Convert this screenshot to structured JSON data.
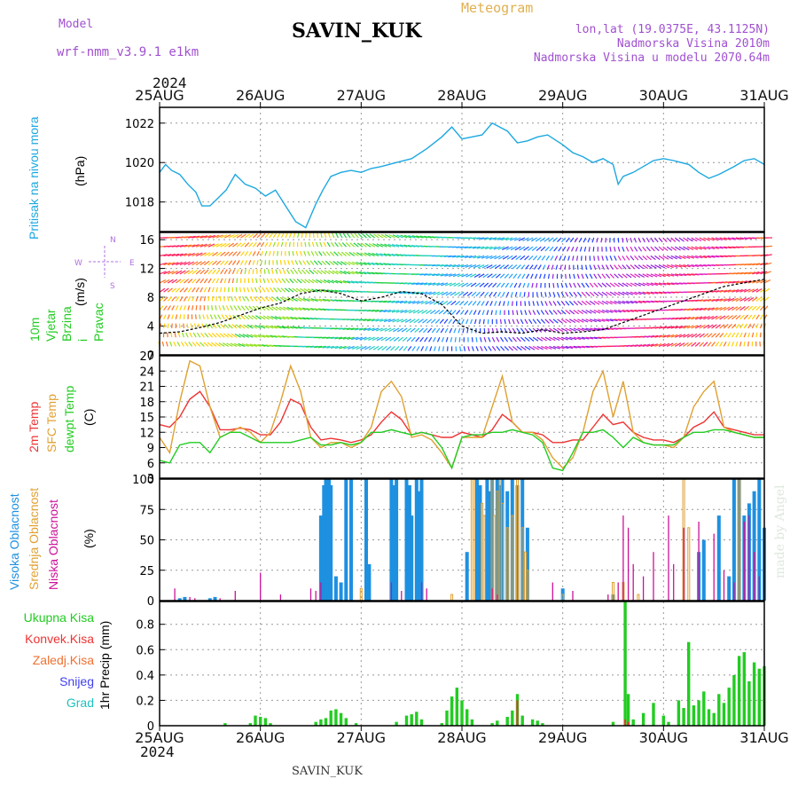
{
  "header": {
    "model_label": "Model",
    "model_name": "wrf-nmm_v3.9.1 e1km",
    "title": "SAVIN_KUK",
    "subtitle": "Meteogram",
    "coords": "lon,lat (19.0375E, 43.1125N)",
    "elevation": "Nadmorska Visina 2010m",
    "model_elevation": "Nadmorska Visina u modelu 2070.64m",
    "year": "2024",
    "footer_station": "SAVIN_KUK",
    "watermark": "made by Angel"
  },
  "colors": {
    "pressure": "#1ca8e0",
    "temp2m": "#ee3333",
    "sfc_temp": "#e0a030",
    "dewpt": "#22cc22",
    "high_cloud": "#1e90e0",
    "mid_cloud": "#e0a030",
    "low_cloud": "#cc1199",
    "total_precip": "#22cc22",
    "conv_precip": "#ee3333"
  },
  "chart_data": [
    {
      "type": "line",
      "panel": "pressure",
      "x_ticks": [
        "25AUG",
        "26AUG",
        "27AUG",
        "28AUG",
        "29AUG",
        "30AUG",
        "31AUG"
      ],
      "ylabel": "(hPa)",
      "side_label": "Pritisak na nivou mora",
      "yticks": [
        1018,
        1020,
        1022
      ],
      "ylim": [
        1016.5,
        1022.8
      ],
      "series": [
        {
          "x": [
            0,
            0.06,
            0.12,
            0.2,
            0.28,
            0.36,
            0.42,
            0.5,
            0.58,
            0.66,
            0.75,
            0.85,
            0.95,
            1.05,
            1.15,
            1.25,
            1.35,
            1.45,
            1.55,
            1.62,
            1.7,
            1.8,
            1.9,
            2.0,
            2.1,
            2.2,
            2.35,
            2.5,
            2.65,
            2.8,
            2.9,
            3.0,
            3.1,
            3.2,
            3.3,
            3.45,
            3.55,
            3.65,
            3.75,
            3.85,
            4.0,
            4.1,
            4.2,
            4.3,
            4.4,
            4.5,
            4.55,
            4.6,
            4.7,
            4.8,
            4.9,
            5.0,
            5.1,
            5.25,
            5.35,
            5.45,
            5.55,
            5.7,
            5.8,
            5.9,
            6.0
          ],
          "values": [
            1019.5,
            1019.9,
            1019.6,
            1019.4,
            1018.9,
            1018.5,
            1017.8,
            1017.8,
            1018.2,
            1018.6,
            1019.4,
            1018.9,
            1018.7,
            1018.3,
            1018.6,
            1017.8,
            1017.0,
            1016.7,
            1017.9,
            1018.6,
            1019.3,
            1019.5,
            1019.6,
            1019.5,
            1019.7,
            1019.8,
            1020.0,
            1020.2,
            1020.7,
            1021.3,
            1021.8,
            1021.2,
            1021.3,
            1021.4,
            1022.0,
            1021.6,
            1021.0,
            1021.1,
            1021.3,
            1021.4,
            1020.9,
            1020.5,
            1020.3,
            1020.0,
            1020.2,
            1019.9,
            1018.9,
            1019.3,
            1019.5,
            1019.8,
            1020.1,
            1020.2,
            1020.1,
            1019.9,
            1019.5,
            1019.2,
            1019.4,
            1019.8,
            1020.1,
            1020.2,
            1019.9
          ]
        }
      ]
    },
    {
      "type": "line",
      "panel": "wind",
      "ylabel": "(m/s)",
      "side_label": "10m Vjetar Brzina i Pravac",
      "direction_legend": [
        "N",
        "E",
        "S",
        "W"
      ],
      "yticks": [
        0,
        4,
        8,
        12,
        16
      ],
      "ylim": [
        0,
        17
      ],
      "wind_colors": [
        "#ff2060",
        "#ff7020",
        "#ffd000",
        "#90e020",
        "#20d040",
        "#20d0c0",
        "#20a0ff",
        "#2040ff",
        "#9020e0",
        "#e020c0"
      ],
      "series": [
        {
          "name": "speed",
          "x": [
            0,
            0.2,
            0.4,
            0.6,
            0.8,
            1.0,
            1.2,
            1.4,
            1.6,
            1.8,
            2.0,
            2.2,
            2.4,
            2.6,
            2.8,
            3.0,
            3.2,
            3.4,
            3.6,
            3.8,
            4.0,
            4.2,
            4.4,
            4.6,
            4.8,
            5.0,
            5.2,
            5.4,
            5.6,
            5.8,
            6.0
          ],
          "values": [
            3.0,
            3.2,
            3.8,
            4.5,
            5.5,
            6.5,
            7.2,
            8.5,
            9.0,
            8.5,
            7.5,
            8.0,
            8.8,
            8.5,
            7.0,
            4.0,
            3.0,
            3.2,
            3.0,
            3.5,
            3.0,
            3.2,
            3.5,
            4.5,
            5.5,
            6.5,
            7.5,
            8.5,
            9.5,
            10.0,
            10.5
          ]
        }
      ]
    },
    {
      "type": "line",
      "panel": "temperature",
      "ylabel": "(C)",
      "side_labels": [
        "2m Temp",
        "SFC Temp",
        "dewpt Temp"
      ],
      "yticks": [
        3,
        6,
        9,
        12,
        15,
        18,
        21,
        24,
        27
      ],
      "ylim": [
        3,
        27
      ],
      "x": [
        0,
        0.1,
        0.2,
        0.3,
        0.4,
        0.5,
        0.6,
        0.7,
        0.8,
        0.9,
        1.0,
        1.1,
        1.2,
        1.3,
        1.4,
        1.5,
        1.6,
        1.7,
        1.8,
        1.9,
        2.0,
        2.1,
        2.2,
        2.3,
        2.4,
        2.5,
        2.6,
        2.7,
        2.8,
        2.9,
        3.0,
        3.1,
        3.2,
        3.3,
        3.4,
        3.5,
        3.6,
        3.7,
        3.8,
        3.9,
        4.0,
        4.1,
        4.2,
        4.3,
        4.4,
        4.5,
        4.6,
        4.7,
        4.8,
        4.9,
        5.0,
        5.1,
        5.2,
        5.3,
        5.4,
        5.5,
        5.6,
        5.7,
        5.8,
        5.9,
        6.0
      ],
      "series": [
        {
          "name": "2m Temp",
          "values": [
            13.5,
            13.0,
            15.0,
            18.5,
            20.0,
            17.0,
            12.5,
            12.5,
            12.8,
            12.5,
            11.5,
            11.5,
            14.0,
            18.5,
            17.5,
            13.0,
            10.5,
            10.8,
            10.5,
            10.0,
            10.5,
            11.5,
            14.0,
            16.0,
            14.5,
            11.5,
            12.0,
            11.5,
            11.0,
            11.0,
            12.0,
            11.5,
            11.0,
            12.5,
            15.5,
            14.0,
            12.0,
            12.0,
            11.5,
            10.0,
            10.0,
            10.5,
            10.5,
            13.0,
            15.5,
            13.5,
            14.0,
            12.0,
            11.0,
            10.5,
            10.5,
            10.0,
            11.0,
            13.0,
            14.0,
            16.0,
            13.0,
            12.5,
            12.0,
            11.5,
            11.5
          ]
        },
        {
          "name": "SFC Temp",
          "values": [
            11.0,
            8.0,
            18.0,
            26.0,
            25.0,
            17.0,
            11.0,
            12.0,
            13.0,
            12.0,
            10.0,
            12.0,
            18.0,
            25.0,
            20.0,
            11.0,
            9.0,
            10.0,
            10.0,
            9.0,
            10.0,
            13.0,
            20.0,
            22.0,
            19.0,
            11.0,
            11.5,
            10.5,
            8.0,
            5.0,
            11.0,
            11.0,
            11.0,
            17.0,
            23.0,
            14.0,
            12.0,
            12.0,
            10.5,
            7.0,
            5.0,
            7.0,
            12.0,
            20.0,
            24.0,
            15.0,
            22.0,
            12.0,
            10.0,
            9.5,
            9.5,
            9.0,
            11.0,
            17.0,
            20.0,
            22.0,
            13.0,
            12.0,
            11.5,
            11.0,
            11.0
          ]
        },
        {
          "name": "dewpt Temp",
          "values": [
            6.5,
            6.0,
            9.5,
            10.0,
            10.0,
            8.0,
            11.0,
            12.0,
            12.0,
            11.0,
            10.0,
            10.0,
            10.0,
            10.0,
            10.5,
            11.0,
            9.5,
            9.5,
            10.0,
            9.5,
            10.0,
            12.0,
            12.0,
            12.5,
            12.0,
            11.5,
            12.0,
            11.5,
            9.0,
            5.0,
            11.0,
            11.5,
            11.5,
            12.0,
            12.0,
            12.5,
            12.0,
            11.5,
            10.0,
            5.0,
            4.5,
            8.0,
            12.0,
            12.0,
            12.5,
            11.0,
            9.0,
            11.0,
            10.0,
            9.5,
            9.5,
            9.5,
            11.0,
            12.0,
            12.0,
            12.5,
            12.5,
            12.0,
            11.5,
            11.0,
            11.0
          ]
        }
      ]
    },
    {
      "type": "bar",
      "panel": "cloud",
      "ylabel": "(%)",
      "side_labels": [
        "Visoka Oblacnost",
        "Srednja Oblacnost",
        "Niska Oblacnost"
      ],
      "yticks": [
        0,
        25,
        50,
        75,
        100
      ],
      "ylim": [
        0,
        100
      ],
      "high": [
        [
          0.2,
          2
        ],
        [
          0.25,
          3
        ],
        [
          0.5,
          2
        ],
        [
          0.55,
          3
        ],
        [
          1.6,
          70
        ],
        [
          1.63,
          95
        ],
        [
          1.65,
          100
        ],
        [
          1.68,
          100
        ],
        [
          1.7,
          95
        ],
        [
          1.75,
          20
        ],
        [
          1.8,
          15
        ],
        [
          1.85,
          100
        ],
        [
          1.9,
          100
        ],
        [
          2.05,
          100
        ],
        [
          2.08,
          30
        ],
        [
          2.3,
          100
        ],
        [
          2.32,
          95
        ],
        [
          2.35,
          100
        ],
        [
          2.45,
          100
        ],
        [
          2.48,
          95
        ],
        [
          2.5,
          70
        ],
        [
          2.55,
          100
        ],
        [
          2.58,
          90
        ],
        [
          2.6,
          100
        ],
        [
          3.05,
          40
        ],
        [
          3.15,
          100
        ],
        [
          3.18,
          95
        ],
        [
          3.25,
          100
        ],
        [
          3.28,
          90
        ],
        [
          3.3,
          100
        ],
        [
          3.35,
          100
        ],
        [
          3.38,
          95
        ],
        [
          3.4,
          100
        ],
        [
          3.45,
          90
        ],
        [
          3.5,
          100
        ],
        [
          3.55,
          95
        ],
        [
          3.6,
          100
        ],
        [
          3.65,
          60
        ],
        [
          4.0,
          10
        ],
        [
          4.5,
          5
        ],
        [
          5.35,
          40
        ],
        [
          5.4,
          50
        ],
        [
          5.55,
          70
        ],
        [
          5.65,
          20
        ],
        [
          5.7,
          100
        ],
        [
          5.75,
          100
        ],
        [
          5.8,
          70
        ],
        [
          5.85,
          80
        ],
        [
          5.9,
          90
        ],
        [
          5.95,
          100
        ],
        [
          6.0,
          60
        ]
      ],
      "mid": [
        [
          2.0,
          10
        ],
        [
          2.9,
          5
        ],
        [
          3.1,
          100
        ],
        [
          3.12,
          100
        ],
        [
          3.2,
          80
        ],
        [
          3.22,
          70
        ],
        [
          3.3,
          100
        ],
        [
          3.32,
          70
        ],
        [
          3.35,
          90
        ],
        [
          3.38,
          100
        ],
        [
          3.4,
          80
        ],
        [
          3.45,
          60
        ],
        [
          3.5,
          70
        ],
        [
          3.55,
          100
        ],
        [
          3.6,
          60
        ],
        [
          3.63,
          40
        ],
        [
          3.65,
          25
        ],
        [
          4.0,
          5
        ],
        [
          4.5,
          15
        ],
        [
          4.6,
          15
        ],
        [
          4.75,
          5
        ],
        [
          5.2,
          100
        ],
        [
          5.25,
          60
        ],
        [
          5.75,
          100
        ]
      ],
      "low": [
        [
          0.15,
          10
        ],
        [
          0.3,
          3
        ],
        [
          0.35,
          2
        ],
        [
          0.6,
          2
        ],
        [
          0.75,
          8
        ],
        [
          1.0,
          23
        ],
        [
          1.2,
          5
        ],
        [
          1.5,
          10
        ],
        [
          1.55,
          8
        ],
        [
          1.6,
          15
        ],
        [
          2.3,
          15
        ],
        [
          2.4,
          8
        ],
        [
          2.6,
          15
        ],
        [
          2.65,
          10
        ],
        [
          3.3,
          10
        ],
        [
          3.35,
          5
        ],
        [
          3.9,
          15
        ],
        [
          4.1,
          8
        ],
        [
          4.45,
          5
        ],
        [
          4.55,
          15
        ],
        [
          4.6,
          70
        ],
        [
          4.65,
          60
        ],
        [
          4.7,
          30
        ],
        [
          4.8,
          20
        ],
        [
          4.9,
          40
        ],
        [
          5.05,
          70
        ],
        [
          5.1,
          30
        ],
        [
          5.2,
          60
        ],
        [
          5.35,
          65
        ],
        [
          5.5,
          55
        ],
        [
          5.6,
          25
        ],
        [
          5.7,
          15
        ],
        [
          5.8,
          65
        ],
        [
          5.85,
          70
        ],
        [
          5.9,
          40
        ],
        [
          5.95,
          20
        ]
      ]
    },
    {
      "type": "bar",
      "panel": "precip",
      "ylabel": "1hr Precip (mm)",
      "side_labels": [
        "Ukupna Kisa",
        "Konvek.Kisa",
        "Zaledj.Kisa",
        "Snijeg",
        "Grad"
      ],
      "yticks": [
        0,
        0.2,
        0.4,
        0.6,
        0.8
      ],
      "ylim": [
        0,
        0.98
      ],
      "x_ticks": [
        "25AUG",
        "26AUG",
        "27AUG",
        "28AUG",
        "29AUG",
        "30AUG",
        "31AUG"
      ],
      "total": [
        [
          0.65,
          0.02
        ],
        [
          0.9,
          0.02
        ],
        [
          0.95,
          0.08
        ],
        [
          1.0,
          0.07
        ],
        [
          1.05,
          0.06
        ],
        [
          1.1,
          0.02
        ],
        [
          1.55,
          0.03
        ],
        [
          1.6,
          0.05
        ],
        [
          1.65,
          0.06
        ],
        [
          1.7,
          0.12
        ],
        [
          1.75,
          0.13
        ],
        [
          1.8,
          0.1
        ],
        [
          1.85,
          0.06
        ],
        [
          1.95,
          0.02
        ],
        [
          2.35,
          0.03
        ],
        [
          2.45,
          0.08
        ],
        [
          2.5,
          0.09
        ],
        [
          2.55,
          0.11
        ],
        [
          2.6,
          0.05
        ],
        [
          2.8,
          0.02
        ],
        [
          2.85,
          0.12
        ],
        [
          2.9,
          0.23
        ],
        [
          2.95,
          0.3
        ],
        [
          3.0,
          0.2
        ],
        [
          3.05,
          0.13
        ],
        [
          3.1,
          0.05
        ],
        [
          3.3,
          0.02
        ],
        [
          3.35,
          0.04
        ],
        [
          3.45,
          0.07
        ],
        [
          3.5,
          0.12
        ],
        [
          3.55,
          0.25
        ],
        [
          3.6,
          0.08
        ],
        [
          3.7,
          0.05
        ],
        [
          3.75,
          0.04
        ],
        [
          3.8,
          0.02
        ],
        [
          4.5,
          0.03
        ],
        [
          4.62,
          0.98
        ],
        [
          4.65,
          0.25
        ],
        [
          4.7,
          0.05
        ],
        [
          4.8,
          0.1
        ],
        [
          4.9,
          0.18
        ],
        [
          5.0,
          0.08
        ],
        [
          5.05,
          0.03
        ],
        [
          5.15,
          0.2
        ],
        [
          5.2,
          0.14
        ],
        [
          5.25,
          0.66
        ],
        [
          5.3,
          0.16
        ],
        [
          5.35,
          0.2
        ],
        [
          5.4,
          0.27
        ],
        [
          5.45,
          0.13
        ],
        [
          5.5,
          0.1
        ],
        [
          5.55,
          0.25
        ],
        [
          5.6,
          0.18
        ],
        [
          5.65,
          0.3
        ],
        [
          5.7,
          0.4
        ],
        [
          5.75,
          0.55
        ],
        [
          5.8,
          0.58
        ],
        [
          5.85,
          0.35
        ],
        [
          5.9,
          0.5
        ],
        [
          5.95,
          0.45
        ],
        [
          6.0,
          0.47
        ]
      ],
      "convective": [
        [
          3.55,
          0.2
        ],
        [
          4.62,
          0.05
        ],
        [
          4.65,
          0.03
        ]
      ]
    }
  ]
}
